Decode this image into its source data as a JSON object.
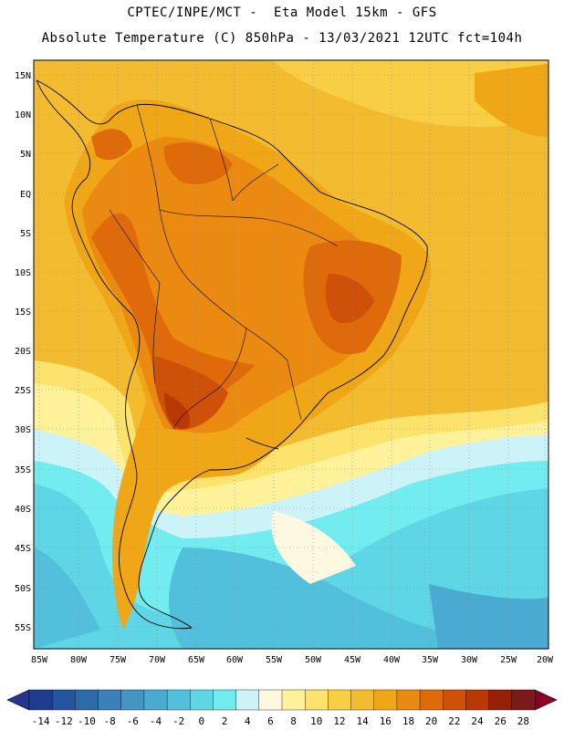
{
  "header": {
    "line1": "CPTEC/INPE/MCT -  Eta Model 15km - GFS",
    "line2": "Absolute Temperature (C) 850hPa - 13/03/2021 12UTC fct=104h"
  },
  "axes": {
    "lat_labels": [
      "15N",
      "10N",
      "5N",
      "EQ",
      "5S",
      "10S",
      "15S",
      "20S",
      "25S",
      "30S",
      "35S",
      "40S",
      "45S",
      "50S",
      "55S"
    ],
    "lon_labels": [
      "85W",
      "80W",
      "75W",
      "70W",
      "65W",
      "60W",
      "55W",
      "50W",
      "45W",
      "40W",
      "35W",
      "30W",
      "25W",
      "20W"
    ]
  },
  "colorbar": {
    "labels": [
      "-14",
      "-12",
      "-10",
      "-8",
      "-6",
      "-4",
      "-2",
      "0",
      "2",
      "4",
      "6",
      "8",
      "10",
      "12",
      "14",
      "16",
      "18",
      "20",
      "22",
      "24",
      "26",
      "28"
    ],
    "colors": [
      "#1f3d8f",
      "#25559e",
      "#2e6aaa",
      "#3b80b8",
      "#4595c4",
      "#4aaad1",
      "#52c0dc",
      "#5fd6e6",
      "#72ecef",
      "#ccf4f8",
      "#fff8e0",
      "#fff29a",
      "#fce36d",
      "#f8cf44",
      "#f3bb2f",
      "#f0a717",
      "#eb8a10",
      "#df6a0a",
      "#cf5008",
      "#b83806",
      "#952005",
      "#7a1a1a"
    ],
    "end_low_color": "#253690",
    "end_high_color": "#8a0026"
  }
}
